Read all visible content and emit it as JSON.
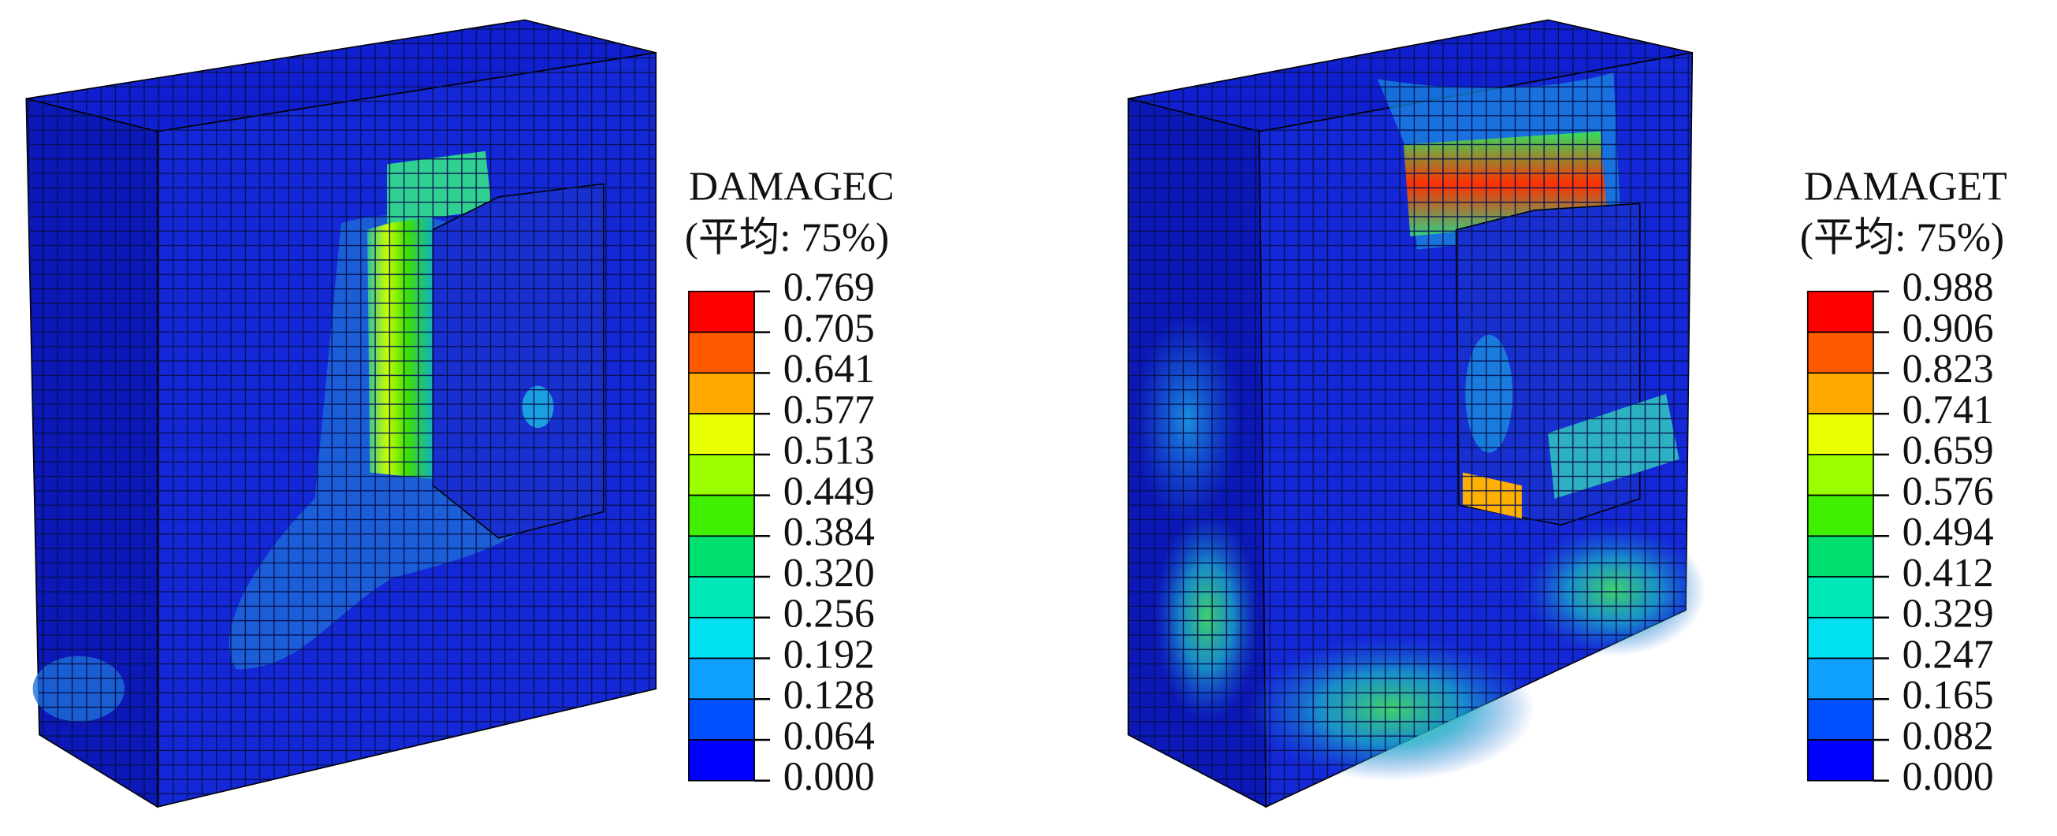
{
  "left": {
    "legend": {
      "title": "DAMAGEC",
      "subtitle": "(平均: 75%)",
      "labels": [
        "0.769",
        "0.705",
        "0.641",
        "0.577",
        "0.513",
        "0.449",
        "0.384",
        "0.320",
        "0.256",
        "0.192",
        "0.128",
        "0.064",
        "0.000"
      ]
    }
  },
  "right": {
    "legend": {
      "title": "DAMAGET",
      "subtitle": "(平均: 75%)",
      "labels": [
        "0.988",
        "0.906",
        "0.823",
        "0.741",
        "0.659",
        "0.576",
        "0.494",
        "0.412",
        "0.329",
        "0.247",
        "0.165",
        "0.082",
        "0.000"
      ]
    }
  }
}
